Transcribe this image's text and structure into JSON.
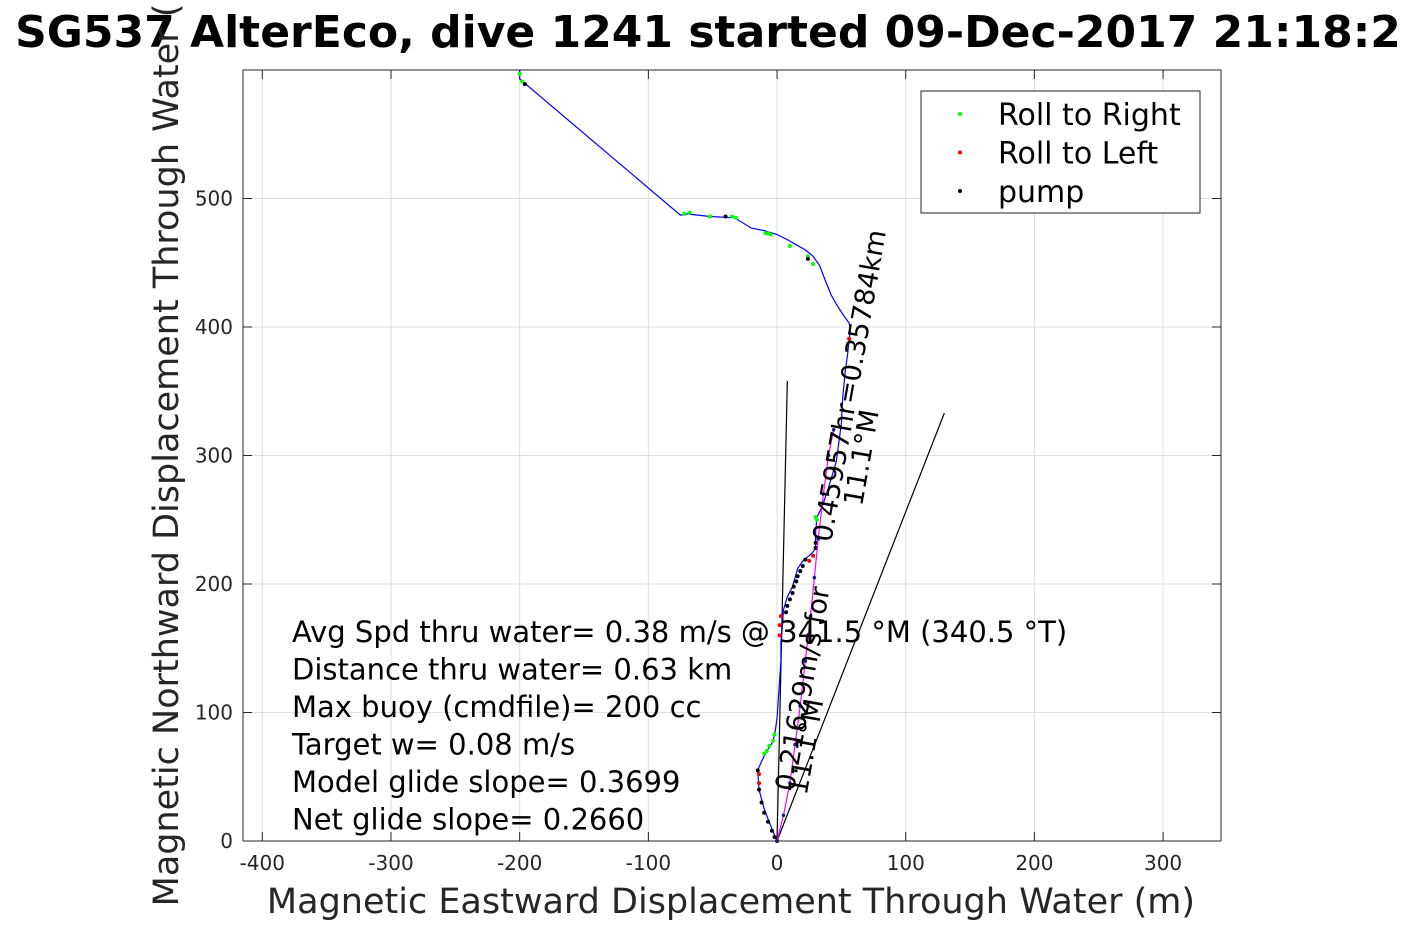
{
  "chart_data": {
    "type": "line",
    "title": "SG537 AlterEco, dive 1241 started 09-Dec-2017 21:18:2",
    "xlabel": "Magnetic Eastward Displacement Through Water (m)",
    "ylabel": "Magnetic Northward Displacement Through Water (",
    "xlim": [
      -415,
      345
    ],
    "ylim": [
      0,
      600
    ],
    "xticks": [
      -400,
      -300,
      -200,
      -100,
      0,
      100,
      200,
      300
    ],
    "xtick_labels": [
      "-400",
      "-300",
      "-200",
      "-100",
      "0",
      "100",
      "200",
      "300"
    ],
    "yticks": [
      0,
      100,
      200,
      300,
      400,
      500
    ],
    "ytick_labels": [
      "0",
      "100",
      "200",
      "300",
      "400",
      "500"
    ],
    "grid": true,
    "legend_position": "top-right",
    "series": [
      {
        "name": "track",
        "color": "#0000ff",
        "points": [
          [
            0,
            0
          ],
          [
            -5,
            12
          ],
          [
            -10,
            25
          ],
          [
            -14,
            40
          ],
          [
            -15,
            55
          ],
          [
            -12,
            62
          ],
          [
            -8,
            70
          ],
          [
            -4,
            76
          ],
          [
            -2,
            82
          ],
          [
            0,
            95
          ],
          [
            1,
            110
          ],
          [
            2,
            125
          ],
          [
            3,
            140
          ],
          [
            3,
            155
          ],
          [
            4,
            165
          ],
          [
            5,
            180
          ],
          [
            8,
            190
          ],
          [
            12,
            198
          ],
          [
            14,
            205
          ],
          [
            16,
            212
          ],
          [
            20,
            218
          ],
          [
            25,
            222
          ],
          [
            28,
            225
          ],
          [
            30,
            228
          ],
          [
            30,
            232
          ],
          [
            30,
            240
          ],
          [
            31,
            252
          ],
          [
            35,
            260
          ],
          [
            40,
            275
          ],
          [
            46,
            295
          ],
          [
            50,
            325
          ],
          [
            51,
            345
          ],
          [
            53,
            365
          ],
          [
            55,
            380
          ],
          [
            56,
            390
          ],
          [
            57,
            398
          ],
          [
            56,
            403
          ],
          [
            51,
            410
          ],
          [
            46,
            418
          ],
          [
            42,
            425
          ],
          [
            38,
            435
          ],
          [
            33,
            448
          ],
          [
            28,
            455
          ],
          [
            22,
            460
          ],
          [
            15,
            464
          ],
          [
            8,
            468
          ],
          [
            0,
            472
          ],
          [
            -10,
            475
          ],
          [
            -20,
            477
          ],
          [
            -33,
            485
          ],
          [
            -52,
            486
          ],
          [
            -70,
            488
          ],
          [
            -75,
            487
          ],
          [
            -200,
            593
          ],
          [
            -200,
            600
          ]
        ]
      },
      {
        "name": "Roll to Right",
        "color": "#00ff00",
        "points": [
          [
            -200,
            597
          ],
          [
            -198,
            591
          ],
          [
            -72,
            488
          ],
          [
            -68,
            489
          ],
          [
            -52,
            486
          ],
          [
            -35,
            486
          ],
          [
            -32,
            485
          ],
          [
            -9,
            473
          ],
          [
            -7,
            473
          ],
          [
            -5,
            472
          ],
          [
            10,
            463
          ],
          [
            24,
            455
          ],
          [
            28,
            449
          ],
          [
            30,
            252
          ],
          [
            31,
            250
          ],
          [
            -10,
            68
          ],
          [
            -8,
            70
          ],
          [
            -6,
            74
          ],
          [
            -3,
            78
          ],
          [
            -2,
            83
          ]
        ]
      },
      {
        "name": "Roll to Left",
        "color": "#ff0000",
        "points": [
          [
            56,
            391
          ],
          [
            28,
            222
          ],
          [
            25,
            218
          ],
          [
            3,
            175
          ],
          [
            2,
            168
          ],
          [
            2,
            160
          ],
          [
            -14,
            52
          ],
          [
            -14,
            45
          ]
        ]
      },
      {
        "name": "pump",
        "color": "#000000",
        "points": [
          [
            -196,
            589
          ],
          [
            -40,
            486
          ],
          [
            24,
            453
          ],
          [
            30,
            228
          ],
          [
            30,
            232
          ],
          [
            22,
            219
          ],
          [
            20,
            214
          ],
          [
            18,
            210
          ],
          [
            16,
            206
          ],
          [
            15,
            202
          ],
          [
            13,
            198
          ],
          [
            12,
            193
          ],
          [
            10,
            188
          ],
          [
            8,
            183
          ],
          [
            7,
            178
          ],
          [
            -15,
            55
          ],
          [
            -14,
            40
          ],
          [
            -12,
            30
          ],
          [
            -10,
            22
          ],
          [
            -7,
            15
          ],
          [
            -4,
            8
          ],
          [
            -2,
            3
          ],
          [
            0,
            0
          ]
        ]
      },
      {
        "name": "surface-drift",
        "color": "#ff00ff",
        "points": [
          [
            0,
            0
          ],
          [
            5,
            20
          ],
          [
            10,
            45
          ],
          [
            14,
            75
          ],
          [
            18,
            105
          ],
          [
            22,
            140
          ],
          [
            26,
            175
          ],
          [
            29,
            205
          ],
          [
            32,
            235
          ],
          [
            36,
            270
          ],
          [
            40,
            300
          ],
          [
            44,
            320
          ]
        ]
      }
    ],
    "reference_lines": [
      {
        "from": [
          0,
          0
        ],
        "to": [
          8,
          358
        ],
        "color": "#000000"
      },
      {
        "from": [
          0,
          0
        ],
        "to": [
          130,
          333
        ],
        "color": "#000000"
      }
    ],
    "legend": [
      {
        "label": "Roll to Right",
        "color": "#00ff00"
      },
      {
        "label": "Roll to Left",
        "color": "#ff0000"
      },
      {
        "label": "pump",
        "color": "#000000"
      }
    ],
    "stats_text": [
      "Avg Spd thru water=  0.38 m/s @ 341.5 °M (340.5 °T)",
      "Distance thru water=  0.63 km",
      "Max buoy (cmdfile)= 200 cc",
      "Target w= 0.08 m/s",
      "Model glide slope= 0.3699",
      "Net glide slope= 0.2660"
    ],
    "annotations": [
      {
        "text": "0.45957hr=0.35784km",
        "anchor": [
          42,
          232
        ],
        "angle": -80
      },
      {
        "text": "11.1°M",
        "anchor": [
          66,
          260
        ],
        "angle": -80
      },
      {
        "text": "0.21629m/s for",
        "anchor": [
          13,
          38
        ],
        "angle": -80
      },
      {
        "text": "11.1°M",
        "anchor": [
          23,
          35
        ],
        "angle": -80
      }
    ]
  }
}
